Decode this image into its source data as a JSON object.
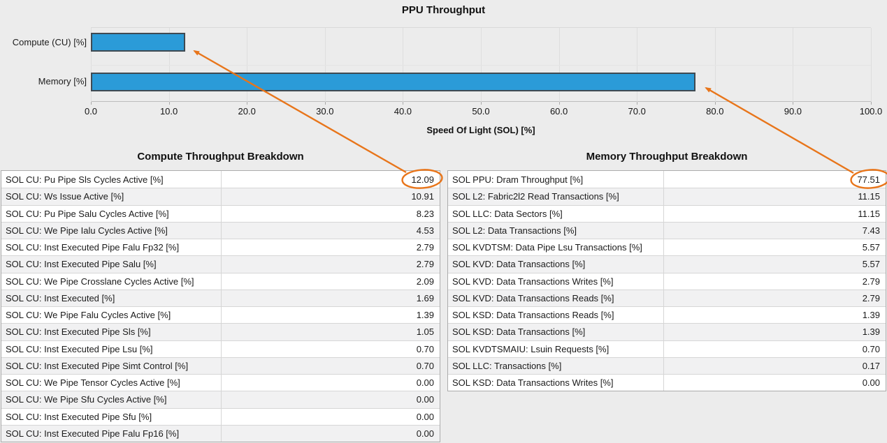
{
  "chart": {
    "title": "PPU Throughput",
    "axis_title": "Speed Of Light (SOL) [%]",
    "categories": [
      "Compute (CU) [%]",
      "Memory [%]"
    ],
    "values": [
      12.09,
      77.51
    ],
    "ticks": [
      "0.0",
      "10.0",
      "20.0",
      "30.0",
      "40.0",
      "50.0",
      "60.0",
      "70.0",
      "80.0",
      "90.0",
      "100.0"
    ],
    "bar_color": "#2b9bd8",
    "bar_border_color": "#3f4a52",
    "annotation_color": "#e8751a"
  },
  "chart_data": {
    "type": "bar",
    "orientation": "horizontal",
    "title": "PPU Throughput",
    "xlabel": "Speed Of Light (SOL) [%]",
    "ylabel": "",
    "categories": [
      "Compute (CU) [%]",
      "Memory [%]"
    ],
    "values": [
      12.09,
      77.51
    ],
    "xlim": [
      0,
      100
    ],
    "x_ticks": [
      0,
      10,
      20,
      30,
      40,
      50,
      60,
      70,
      80,
      90,
      100
    ],
    "grid": true,
    "legend": false,
    "annotations": [
      "circled value 12.09 points to Compute bar",
      "circled value 77.51 points to Memory bar"
    ]
  },
  "compute_table": {
    "title": "Compute Throughput Breakdown",
    "rows": [
      {
        "name": "SOL CU: Pu Pipe Sls Cycles Active [%]",
        "value": "12.09"
      },
      {
        "name": "SOL CU: Ws Issue Active [%]",
        "value": "10.91"
      },
      {
        "name": "SOL CU: Pu Pipe Salu Cycles Active [%]",
        "value": "8.23"
      },
      {
        "name": "SOL CU: We Pipe Ialu Cycles Active [%]",
        "value": "4.53"
      },
      {
        "name": "SOL CU: Inst Executed Pipe Falu Fp32 [%]",
        "value": "2.79"
      },
      {
        "name": "SOL CU: Inst Executed Pipe Salu [%]",
        "value": "2.79"
      },
      {
        "name": "SOL CU: We Pipe Crosslane Cycles Active [%]",
        "value": "2.09"
      },
      {
        "name": "SOL CU: Inst Executed [%]",
        "value": "1.69"
      },
      {
        "name": "SOL CU: We Pipe Falu Cycles Active [%]",
        "value": "1.39"
      },
      {
        "name": "SOL CU: Inst Executed Pipe Sls [%]",
        "value": "1.05"
      },
      {
        "name": "SOL CU: Inst Executed Pipe Lsu [%]",
        "value": "0.70"
      },
      {
        "name": "SOL CU: Inst Executed Pipe Simt Control [%]",
        "value": "0.70"
      },
      {
        "name": "SOL CU: We Pipe Tensor Cycles Active [%]",
        "value": "0.00"
      },
      {
        "name": "SOL CU: We Pipe Sfu Cycles Active [%]",
        "value": "0.00"
      },
      {
        "name": "SOL CU: Inst Executed Pipe Sfu [%]",
        "value": "0.00"
      },
      {
        "name": "SOL CU: Inst Executed Pipe Falu Fp16 [%]",
        "value": "0.00"
      }
    ]
  },
  "memory_table": {
    "title": "Memory Throughput Breakdown",
    "rows": [
      {
        "name": "SOL PPU: Dram Throughput [%]",
        "value": "77.51"
      },
      {
        "name": "SOL L2: Fabric2l2 Read Transactions [%]",
        "value": "11.15"
      },
      {
        "name": "SOL LLC: Data Sectors [%]",
        "value": "11.15"
      },
      {
        "name": "SOL L2: Data Transactions [%]",
        "value": "7.43"
      },
      {
        "name": "SOL KVDTSM: Data Pipe Lsu Transactions [%]",
        "value": "5.57"
      },
      {
        "name": "SOL KVD: Data Transactions [%]",
        "value": "5.57"
      },
      {
        "name": "SOL KVD: Data Transactions Writes [%]",
        "value": "2.79"
      },
      {
        "name": "SOL KVD: Data Transactions Reads [%]",
        "value": "2.79"
      },
      {
        "name": "SOL KSD: Data Transactions Reads [%]",
        "value": "1.39"
      },
      {
        "name": "SOL KSD: Data Transactions [%]",
        "value": "1.39"
      },
      {
        "name": "SOL KVDTSMAIU: Lsuin Requests [%]",
        "value": "0.70"
      },
      {
        "name": "SOL LLC: Transactions [%]",
        "value": "0.17"
      },
      {
        "name": "SOL KSD: Data Transactions Writes [%]",
        "value": "0.00"
      }
    ]
  }
}
